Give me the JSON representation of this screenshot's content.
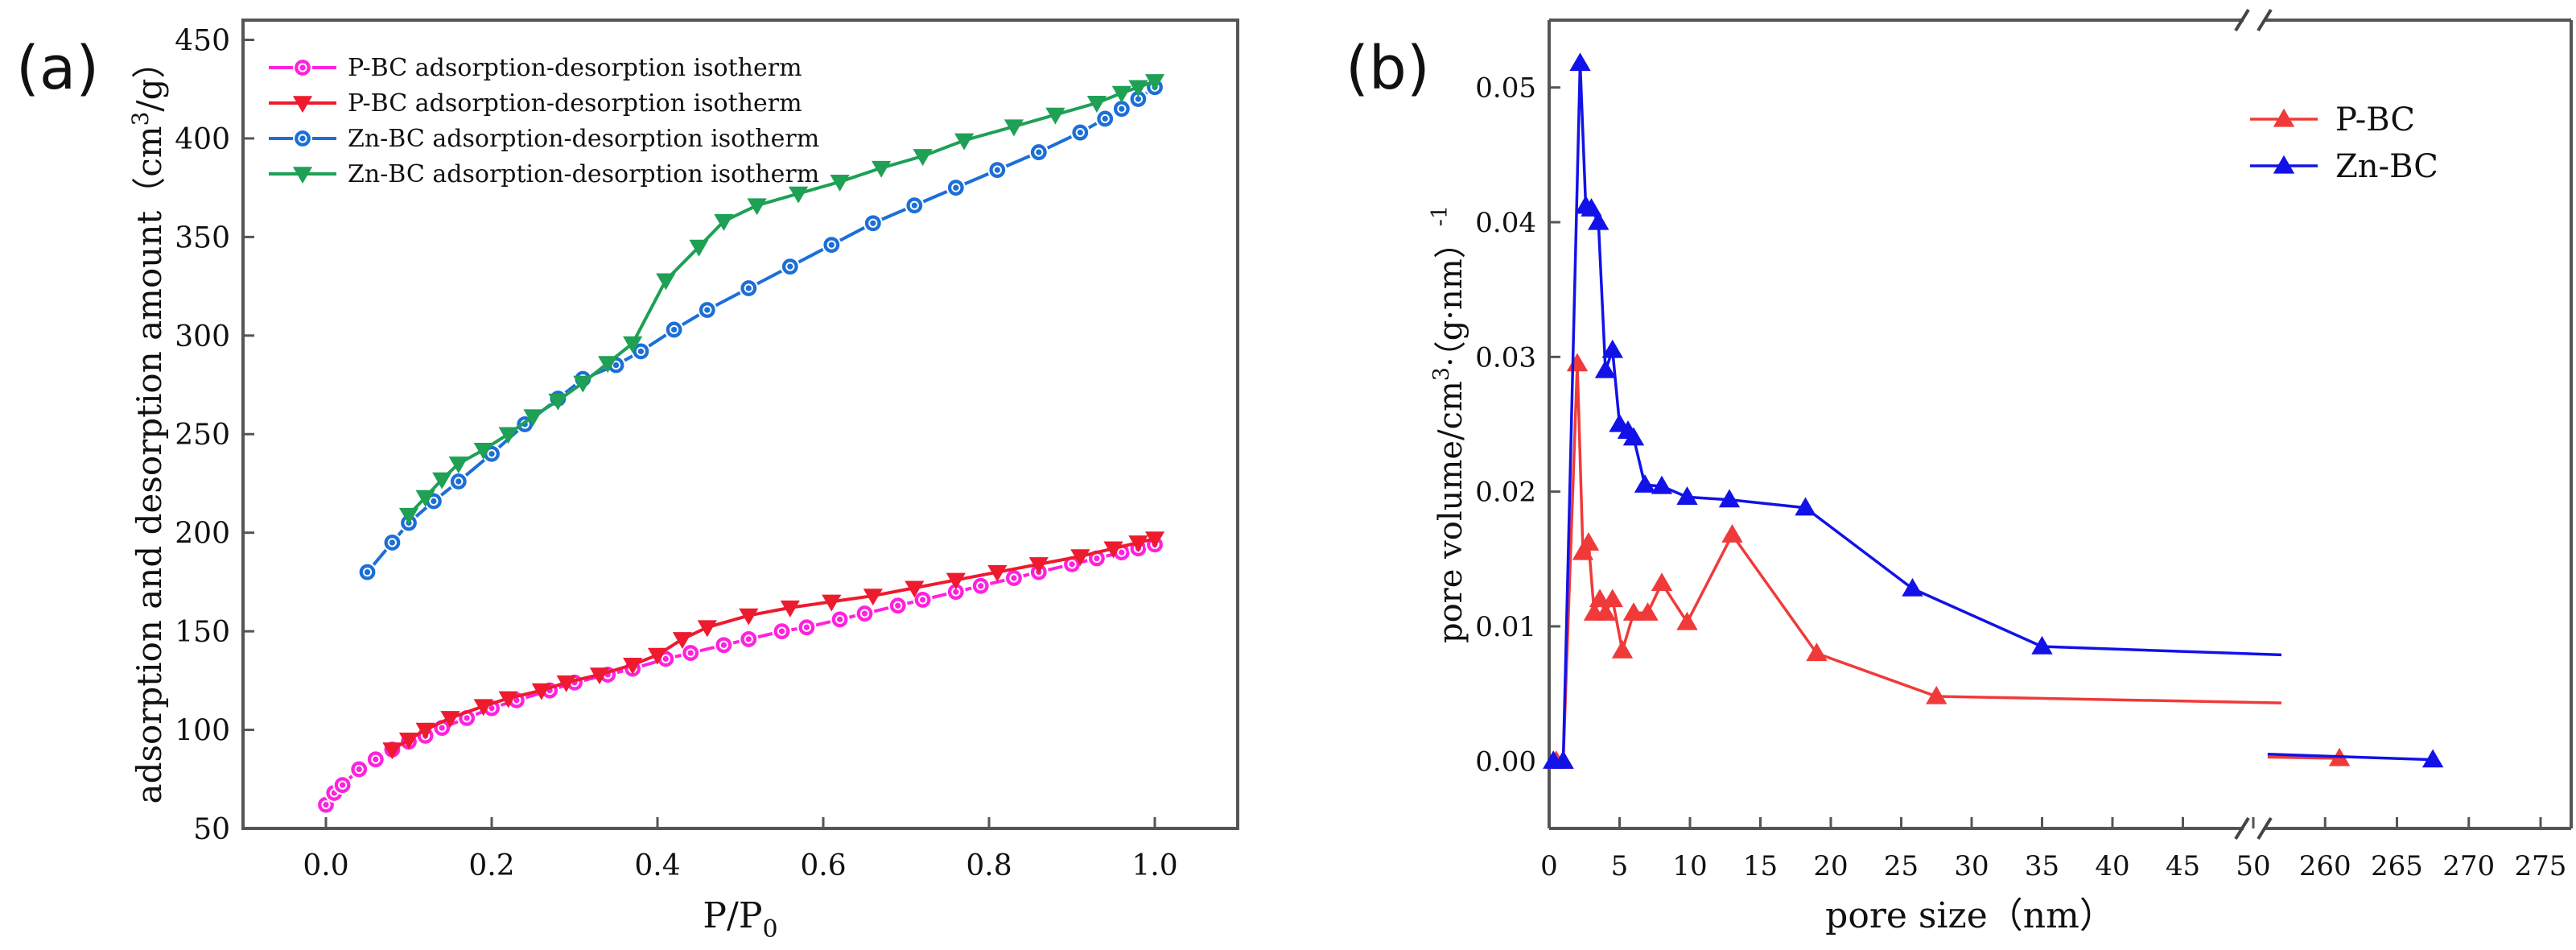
{
  "chart_data": [
    {
      "panel_label": "(a)",
      "type": "line",
      "xlabel": "P/P",
      "xlabel_sub": "0",
      "ylabel": "adsorption and desorption amount（cm",
      "ylabel_sup": "3",
      "ylabel_tail": "/g）",
      "xlim": [
        -0.1,
        1.1
      ],
      "ylim": [
        50,
        460
      ],
      "x_ticks": [
        "0.0",
        "0.2",
        "0.4",
        "0.6",
        "0.8",
        "1.0"
      ],
      "y_ticks": [
        "50",
        "100",
        "150",
        "200",
        "250",
        "300",
        "350",
        "400",
        "450"
      ],
      "legend_position": "top-left",
      "series": [
        {
          "name": "P-BC adsorption-desorption isotherm",
          "color": "#ff22dd",
          "marker": "circle",
          "x": [
            0.0,
            0.01,
            0.02,
            0.04,
            0.06,
            0.08,
            0.1,
            0.12,
            0.14,
            0.17,
            0.2,
            0.23,
            0.27,
            0.3,
            0.34,
            0.37,
            0.41,
            0.44,
            0.48,
            0.51,
            0.55,
            0.58,
            0.62,
            0.65,
            0.69,
            0.72,
            0.76,
            0.79,
            0.83,
            0.86,
            0.9,
            0.93,
            0.96,
            0.98,
            1.0
          ],
          "y": [
            62,
            68,
            72,
            80,
            85,
            90,
            94,
            97,
            101,
            106,
            111,
            115,
            120,
            124,
            128,
            131,
            136,
            139,
            143,
            146,
            150,
            152,
            156,
            159,
            163,
            166,
            170,
            173,
            177,
            180,
            184,
            187,
            190,
            192,
            194
          ]
        },
        {
          "name": "P-BC adsorption-desorption isotherm",
          "color": "#ee1a2e",
          "marker": "triangle-down",
          "x": [
            1.0,
            0.98,
            0.95,
            0.91,
            0.86,
            0.81,
            0.76,
            0.71,
            0.66,
            0.61,
            0.56,
            0.51,
            0.46,
            0.43,
            0.4,
            0.37,
            0.33,
            0.29,
            0.26,
            0.22,
            0.19,
            0.15,
            0.12,
            0.1,
            0.08
          ],
          "y": [
            197,
            195,
            192,
            188,
            184,
            180,
            176,
            172,
            168,
            165,
            162,
            158,
            152,
            146,
            138,
            133,
            128,
            124,
            120,
            116,
            112,
            106,
            100,
            95,
            90
          ]
        },
        {
          "name": "Zn-BC adsorption-desorption isotherm",
          "color": "#1c6fd6",
          "marker": "circle",
          "x": [
            0.05,
            0.08,
            0.1,
            0.13,
            0.16,
            0.2,
            0.24,
            0.28,
            0.31,
            0.35,
            0.38,
            0.42,
            0.46,
            0.51,
            0.56,
            0.61,
            0.66,
            0.71,
            0.76,
            0.81,
            0.86,
            0.91,
            0.94,
            0.96,
            0.98,
            1.0
          ],
          "y": [
            180,
            195,
            205,
            216,
            226,
            240,
            255,
            268,
            278,
            285,
            292,
            303,
            313,
            324,
            335,
            346,
            357,
            366,
            375,
            384,
            393,
            403,
            410,
            415,
            420,
            426
          ]
        },
        {
          "name": "Zn-BC adsorption-desorption isotherm",
          "color": "#1ea055",
          "marker": "triangle-down",
          "x": [
            1.0,
            0.98,
            0.96,
            0.93,
            0.88,
            0.83,
            0.77,
            0.72,
            0.67,
            0.62,
            0.57,
            0.52,
            0.48,
            0.45,
            0.41,
            0.37,
            0.34,
            0.31,
            0.28,
            0.25,
            0.22,
            0.19,
            0.16,
            0.14,
            0.12,
            0.1
          ],
          "y": [
            429,
            426,
            423,
            418,
            412,
            406,
            399,
            391,
            385,
            378,
            372,
            366,
            358,
            345,
            328,
            296,
            286,
            276,
            267,
            259,
            250,
            242,
            235,
            227,
            218,
            209
          ]
        }
      ]
    },
    {
      "panel_label": "(b)",
      "type": "line",
      "xlabel": "pore size（nm）",
      "ylabel": "pore volume/cm",
      "ylabel_sup": "3",
      "ylabel_tail": "·（g·nm）",
      "ylabel_exp": "-1",
      "x_axis_break": "//",
      "x_ticks_left": [
        "0",
        "5",
        "10",
        "15",
        "20",
        "25",
        "30",
        "35",
        "40",
        "45",
        "50"
      ],
      "x_ticks_right": [
        "260",
        "265",
        "270",
        "275"
      ],
      "xlim_left": [
        0,
        50
      ],
      "xlim_right": [
        255,
        275
      ],
      "ylim": [
        -0.005,
        0.055
      ],
      "y_ticks": [
        "0.00",
        "0.01",
        "0.02",
        "0.03",
        "0.04",
        "0.05"
      ],
      "legend_position": "top-right",
      "series": [
        {
          "name": "P-BC",
          "color": "#f03a3a",
          "marker": "triangle-up",
          "x": [
            0.5,
            1.0,
            2.0,
            2.4,
            2.8,
            3.2,
            3.6,
            4.0,
            4.5,
            5.2,
            6.0,
            7.0,
            8.0,
            9.8,
            13.0,
            19.0,
            27.5,
            261.0
          ],
          "y": [
            0.0,
            0.0,
            0.0295,
            0.0155,
            0.0162,
            0.011,
            0.012,
            0.011,
            0.012,
            0.0082,
            0.011,
            0.011,
            0.0132,
            0.0103,
            0.0168,
            0.008,
            0.0048,
            0.0002
          ]
        },
        {
          "name": "Zn-BC",
          "color": "#1212e8",
          "marker": "triangle-up",
          "x": [
            0.3,
            1.0,
            2.2,
            2.6,
            3.0,
            3.5,
            4.0,
            4.5,
            5.0,
            5.6,
            6.0,
            6.8,
            8.0,
            9.8,
            12.8,
            18.2,
            25.8,
            35.0,
            267.5
          ],
          "y": [
            0.0,
            0.0,
            0.0518,
            0.0412,
            0.041,
            0.04,
            0.029,
            0.0305,
            0.025,
            0.0245,
            0.024,
            0.0205,
            0.0204,
            0.0196,
            0.0194,
            0.0188,
            0.0128,
            0.0085,
            0.0001
          ]
        }
      ]
    }
  ]
}
